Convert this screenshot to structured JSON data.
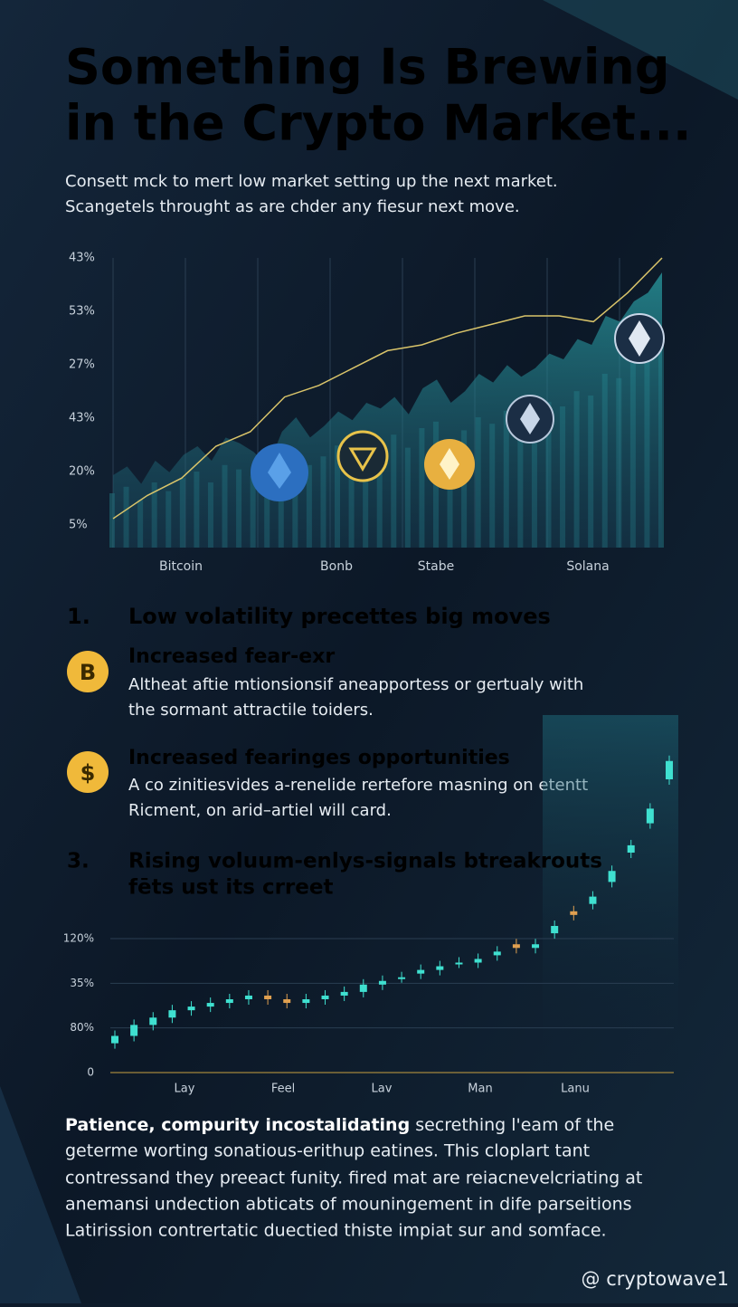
{
  "title_lines": [
    "Something Is Brewing",
    "in the Crypto Market..."
  ],
  "subtitle_lines": [
    "Consett mck to mert low market setting up the next market.",
    "Scangetels throught as are chder any fiesur next move."
  ],
  "top_chart": {
    "type": "area",
    "y_labels": [
      "43%",
      "53%",
      "27%",
      "43%",
      "20%",
      "5%"
    ],
    "x_labels": [
      "Bitcoin",
      "Bonb",
      "Stabe",
      "Solana"
    ],
    "ylim": [
      0,
      100
    ],
    "series": [
      {
        "name": "area",
        "color": "#2aa3a8",
        "values": [
          25,
          28,
          22,
          30,
          26,
          32,
          35,
          30,
          38,
          36,
          33,
          28,
          40,
          45,
          38,
          42,
          47,
          44,
          50,
          48,
          52,
          46,
          55,
          58,
          50,
          54,
          60,
          57,
          63,
          59,
          62,
          67,
          65,
          72,
          70,
          80,
          78,
          85,
          88,
          95
        ]
      },
      {
        "name": "line",
        "color": "#d9c46a",
        "values": [
          10,
          18,
          24,
          35,
          40,
          52,
          56,
          62,
          68,
          70,
          74,
          77,
          80,
          80,
          78,
          88,
          100
        ]
      }
    ]
  },
  "section1": {
    "number": "1.",
    "heading": "Low volatility precettes big moves"
  },
  "items": [
    {
      "heading": "Increased fear-exr",
      "body_lines": [
        "Altheat aftie mtionsionsif aneapportess or gertualy with",
        "the sormant attractile toiders."
      ]
    },
    {
      "heading": "Increased fearinges opportunities",
      "body_lines": [
        "A co zinitiesvides a-renelide rertefore masning on etentt",
        "Ricment, on arid–artiel will card."
      ]
    }
  ],
  "section3": {
    "number": "3.",
    "heading_lines": [
      "Rising voluum-enlys-signals btreakrouts",
      "fēts ust its crreet"
    ]
  },
  "bottom_chart": {
    "type": "candlestick",
    "y_labels": [
      "120%",
      "35%",
      "80%",
      "0"
    ],
    "x_labels": [
      "Lay",
      "Feel",
      "Lav",
      "Man",
      "Lanu"
    ],
    "ylim": [
      0,
      100
    ],
    "up_color": "#3fe0d0",
    "down_color": "#e0a050",
    "open": [
      8,
      10,
      13,
      15,
      17,
      18,
      19,
      20,
      21,
      20,
      19,
      20,
      21,
      22,
      24,
      26,
      27,
      28,
      30,
      30,
      32,
      35,
      34,
      38,
      44,
      46,
      52,
      60,
      68,
      80
    ],
    "close": [
      10,
      13,
      15,
      17,
      18,
      19,
      20,
      21,
      20,
      19,
      20,
      21,
      22,
      24,
      25,
      26,
      28,
      29,
      30,
      31,
      33,
      34,
      35,
      40,
      43,
      48,
      55,
      62,
      72,
      85
    ]
  },
  "paragraph": {
    "bold": "Patience, compurity incostalidating",
    "lines": [
      " secrething l'eam of the",
      "geterme worting sonatious-erithup eatines.  This cloplart tant",
      "contressand they preeact funity. fired mat are reiacnevelcriating at",
      "anemansi undection abticats of mouningement in dife parseitions",
      "Latirission contrertatic duectied thiste impiat sur and somface."
    ]
  },
  "footer": "@ cryptowave1"
}
